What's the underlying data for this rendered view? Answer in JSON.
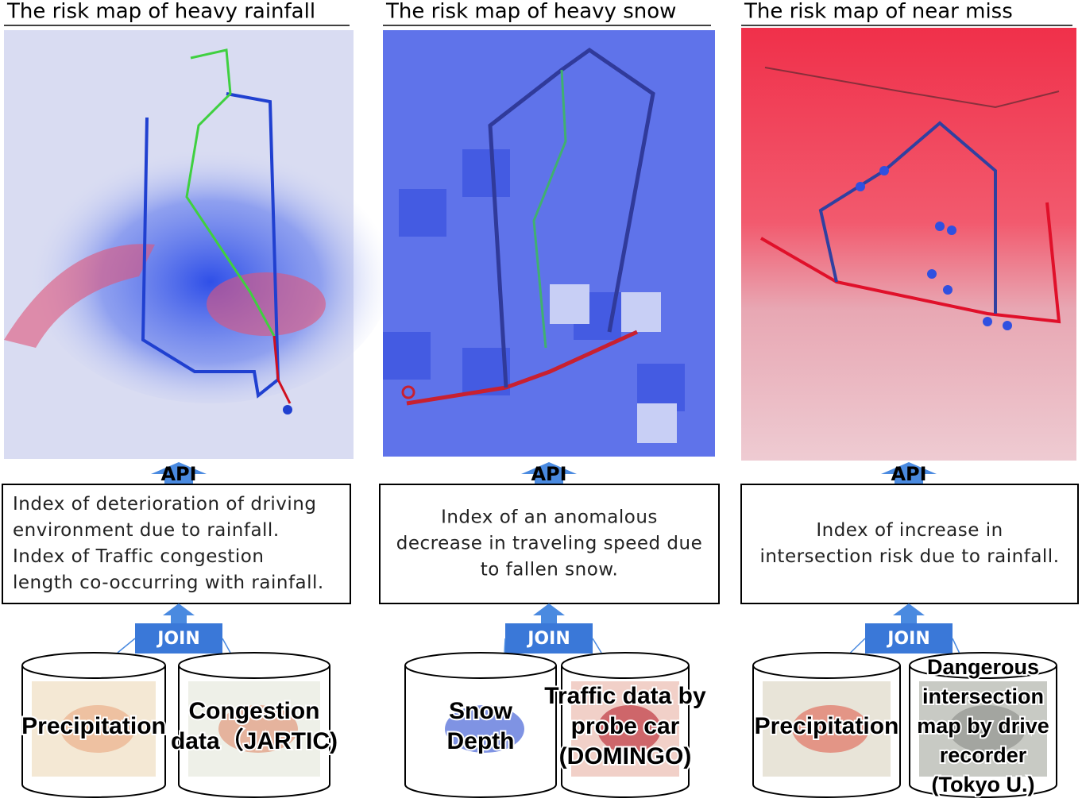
{
  "panels": [
    {
      "title": "The risk map of heavy rainfall",
      "api": "API",
      "index": [
        "Index of deterioration of driving",
        "environment due to rainfall.",
        "Index of Traffic congestion",
        "length co-occurring with rainfall."
      ],
      "join": "JOIN",
      "sources": [
        {
          "label": [
            "Precipitation"
          ]
        },
        {
          "label": [
            "Congestion",
            "data（JARTIC)"
          ]
        }
      ]
    },
    {
      "title": "The risk map of heavy snow",
      "api": "API",
      "index": [
        "Index of an anomalous",
        "decrease in traveling speed due",
        "to fallen snow."
      ],
      "join": "JOIN",
      "sources": [
        {
          "label": [
            "Snow",
            "Depth"
          ]
        },
        {
          "label": [
            "Traffic data by",
            "probe car",
            "(DOMINGO)"
          ]
        }
      ]
    },
    {
      "title": "The risk map of near miss",
      "api": "API",
      "index": [
        "Index of increase in",
        "intersection risk due to rainfall."
      ],
      "join": "JOIN",
      "sources": [
        {
          "label": [
            "Precipitation"
          ]
        },
        {
          "label": [
            "Dangerous",
            "intersection",
            "map by drive",
            "recorder",
            "(Tokyo U.)"
          ]
        }
      ]
    }
  ]
}
